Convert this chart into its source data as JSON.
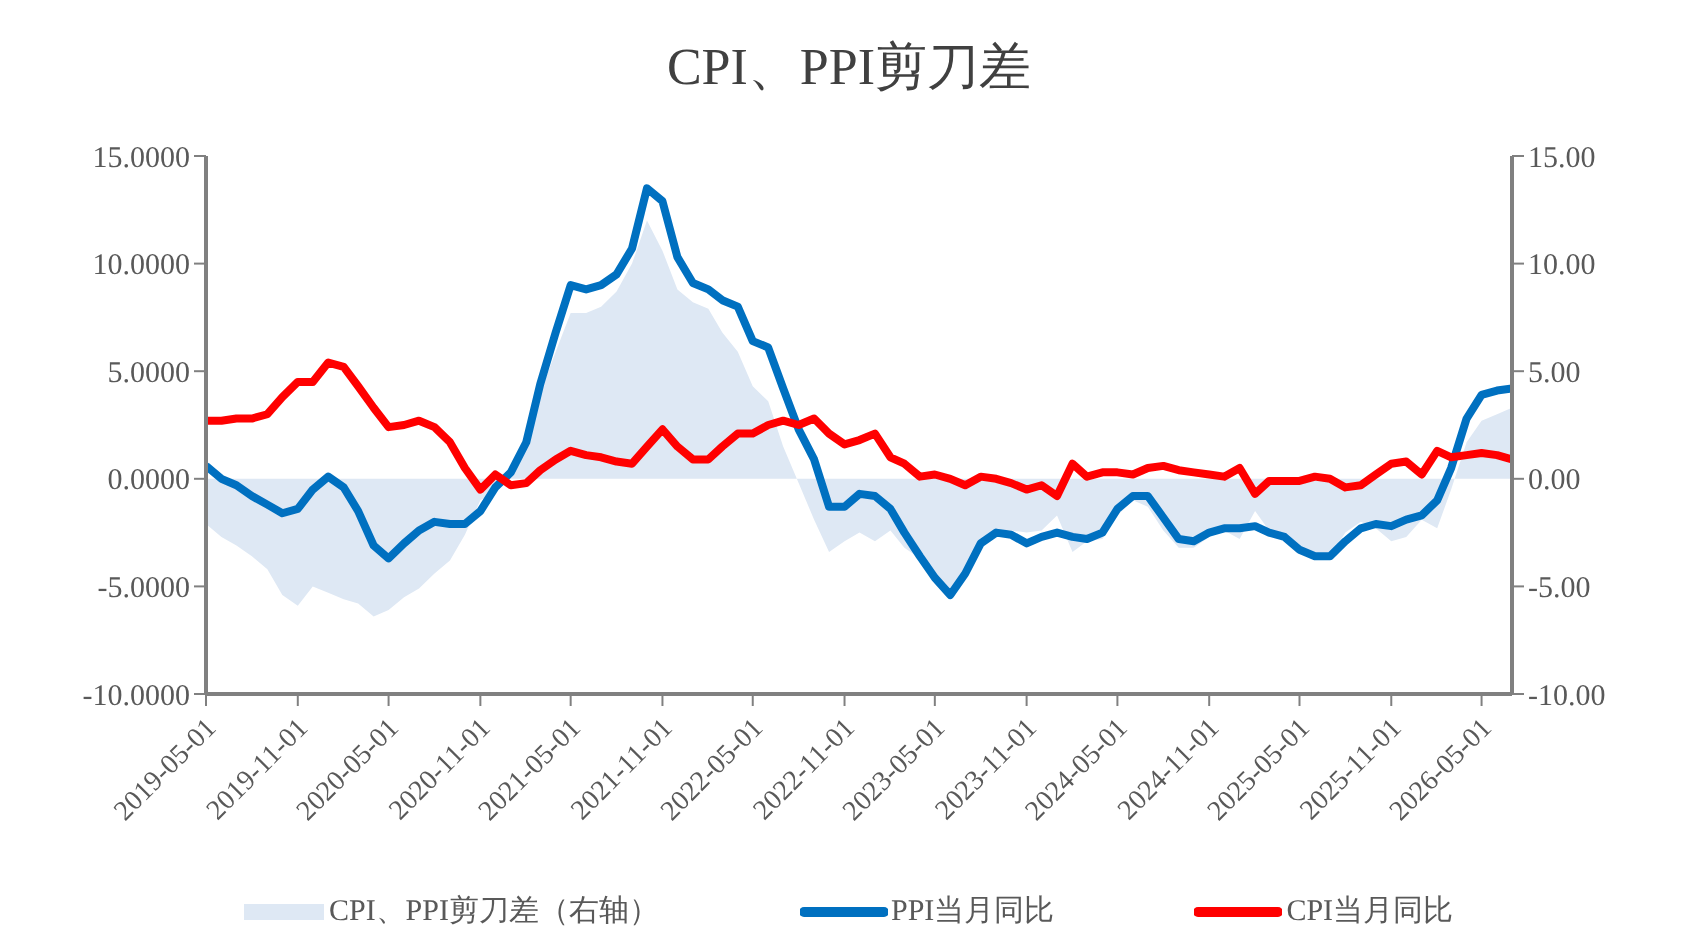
{
  "chart_data": {
    "type": "line",
    "title": "CPI、PPI剪刀差",
    "x": [
      "2019-05-01",
      "2019-06-01",
      "2019-07-01",
      "2019-08-01",
      "2019-09-01",
      "2019-10-01",
      "2019-11-01",
      "2019-12-01",
      "2020-01-01",
      "2020-02-01",
      "2020-03-01",
      "2020-04-01",
      "2020-05-01",
      "2020-06-01",
      "2020-07-01",
      "2020-08-01",
      "2020-09-01",
      "2020-10-01",
      "2020-11-01",
      "2020-12-01",
      "2021-01-01",
      "2021-02-01",
      "2021-03-01",
      "2021-04-01",
      "2021-05-01",
      "2021-06-01",
      "2021-07-01",
      "2021-08-01",
      "2021-09-01",
      "2021-10-01",
      "2021-11-01",
      "2021-12-01",
      "2022-01-01",
      "2022-02-01",
      "2022-03-01",
      "2022-04-01",
      "2022-05-01",
      "2022-06-01",
      "2022-07-01",
      "2022-08-01",
      "2022-09-01",
      "2022-10-01",
      "2022-11-01",
      "2022-12-01",
      "2023-01-01",
      "2023-02-01",
      "2023-03-01",
      "2023-04-01",
      "2023-05-01",
      "2023-06-01",
      "2023-07-01",
      "2023-08-01",
      "2023-09-01",
      "2023-10-01",
      "2023-11-01",
      "2023-12-01",
      "2024-01-01",
      "2024-02-01",
      "2024-03-01",
      "2024-04-01",
      "2024-05-01",
      "2024-06-01",
      "2024-07-01",
      "2024-08-01",
      "2024-09-01",
      "2024-10-01",
      "2024-11-01",
      "2024-12-01",
      "2025-01-01",
      "2025-02-01",
      "2025-03-01",
      "2025-04-01",
      "2025-05-01",
      "2025-06-01",
      "2025-07-01",
      "2025-08-01",
      "2025-09-01",
      "2025-10-01",
      "2025-11-01",
      "2025-12-01",
      "2026-01-01",
      "2026-02-01",
      "2026-03-01",
      "2026-04-01",
      "2026-05-01",
      "2026-06-01",
      "2026-07-01"
    ],
    "xlim": [
      "2019-05-01",
      "2026-07-01"
    ],
    "xticks": [
      "2019-05-01",
      "2019-11-01",
      "2020-05-01",
      "2020-11-01",
      "2021-05-01",
      "2021-11-01",
      "2022-05-01",
      "2022-11-01",
      "2023-05-01",
      "2023-11-01",
      "2024-05-01",
      "2024-11-01",
      "2025-05-01",
      "2025-11-01",
      "2026-05-01"
    ],
    "ylim": [
      -10,
      15
    ],
    "yticks": [
      {
        "value": -10,
        "label": "-10.0000"
      },
      {
        "value": -5,
        "label": "-5.0000"
      },
      {
        "value": 0,
        "label": "0.0000"
      },
      {
        "value": 5,
        "label": "5.0000"
      },
      {
        "value": 10,
        "label": "10.0000"
      },
      {
        "value": 15,
        "label": "15.0000"
      }
    ],
    "y2lim": [
      -10,
      15
    ],
    "y2ticks": [
      {
        "value": -10,
        "label": "-10.00"
      },
      {
        "value": -5,
        "label": "-5.00"
      },
      {
        "value": 0,
        "label": "0.00"
      },
      {
        "value": 5,
        "label": "5.00"
      },
      {
        "value": 10,
        "label": "10.00"
      },
      {
        "value": 15,
        "label": "15.00"
      }
    ],
    "grid": false,
    "legend": "bottom",
    "marker": "none",
    "line_style": "solid",
    "series": [
      {
        "name": "CPI、PPI剪刀差（右轴）",
        "type": "area",
        "axis": "y2",
        "color": "#dee8f4",
        "values": [
          -2.1,
          -2.7,
          -3.1,
          -3.6,
          -4.2,
          -5.4,
          -5.9,
          -5.0,
          -5.3,
          -5.6,
          -5.8,
          -6.4,
          -6.1,
          -5.5,
          -5.1,
          -4.4,
          -3.8,
          -2.6,
          -1.0,
          -0.6,
          0.6,
          1.9,
          4.0,
          5.9,
          7.7,
          7.7,
          8.0,
          8.7,
          10.0,
          12.0,
          10.6,
          8.8,
          8.2,
          7.9,
          6.8,
          5.9,
          4.3,
          3.6,
          1.5,
          -0.2,
          -1.9,
          -3.4,
          -2.9,
          -2.5,
          -2.9,
          -2.4,
          -3.2,
          -3.7,
          -4.8,
          -5.4,
          -4.1,
          -3.1,
          -2.5,
          -2.4,
          -2.5,
          -2.4,
          -1.7,
          -3.4,
          -2.9,
          -2.8,
          -1.7,
          -1.0,
          -1.3,
          -2.4,
          -3.2,
          -3.2,
          -2.7,
          -2.4,
          -2.8,
          -1.5,
          -2.4,
          -2.6,
          -3.2,
          -3.7,
          -3.6,
          -2.5,
          -2.0,
          -2.3,
          -2.9,
          -2.7,
          -1.9,
          -2.3,
          -0.5,
          1.7,
          2.7,
          3.0,
          3.3
        ]
      },
      {
        "name": "PPI当月同比",
        "color": "#0070c0",
        "values": [
          0.6,
          0.0,
          -0.3,
          -0.8,
          -1.2,
          -1.6,
          -1.4,
          -0.5,
          0.1,
          -0.4,
          -1.5,
          -3.1,
          -3.7,
          -3.0,
          -2.4,
          -2.0,
          -2.1,
          -2.1,
          -1.5,
          -0.4,
          0.3,
          1.7,
          4.4,
          6.8,
          9.0,
          8.8,
          9.0,
          9.5,
          10.7,
          13.5,
          12.9,
          10.3,
          9.1,
          8.8,
          8.3,
          8.0,
          6.4,
          6.1,
          4.2,
          2.3,
          0.9,
          -1.3,
          -1.3,
          -0.7,
          -0.8,
          -1.4,
          -2.5,
          -3.6,
          -4.6,
          -5.4,
          -4.4,
          -3.0,
          -2.5,
          -2.6,
          -3.0,
          -2.7,
          -2.5,
          -2.7,
          -2.8,
          -2.5,
          -1.4,
          -0.8,
          -0.8,
          -1.8,
          -2.8,
          -2.9,
          -2.5,
          -2.3,
          -2.3,
          -2.2,
          -2.5,
          -2.7,
          -3.3,
          -3.6,
          -3.6,
          -2.9,
          -2.3,
          -2.1,
          -2.2,
          -1.9,
          -1.7,
          -1.0,
          0.5,
          2.8,
          3.9,
          4.1,
          4.2
        ]
      },
      {
        "name": "CPI当月同比",
        "color": "#ff0000",
        "values": [
          2.7,
          2.7,
          2.8,
          2.8,
          3.0,
          3.8,
          4.5,
          4.5,
          5.4,
          5.2,
          4.3,
          3.3,
          2.4,
          2.5,
          2.7,
          2.4,
          1.7,
          0.5,
          -0.5,
          0.2,
          -0.3,
          -0.2,
          0.4,
          0.9,
          1.3,
          1.1,
          1.0,
          0.8,
          0.7,
          1.5,
          2.3,
          1.5,
          0.9,
          0.9,
          1.5,
          2.1,
          2.1,
          2.5,
          2.7,
          2.5,
          2.8,
          2.1,
          1.6,
          1.8,
          2.1,
          1.0,
          0.7,
          0.1,
          0.2,
          0.0,
          -0.3,
          0.1,
          0.0,
          -0.2,
          -0.5,
          -0.3,
          -0.8,
          0.7,
          0.1,
          0.3,
          0.3,
          0.2,
          0.5,
          0.6,
          0.4,
          0.3,
          0.2,
          0.1,
          0.5,
          -0.7,
          -0.1,
          -0.1,
          -0.1,
          0.1,
          0.0,
          -0.4,
          -0.3,
          0.2,
          0.7,
          0.8,
          0.2,
          1.3,
          1.0,
          1.1,
          1.2,
          1.1,
          0.9
        ]
      }
    ]
  }
}
